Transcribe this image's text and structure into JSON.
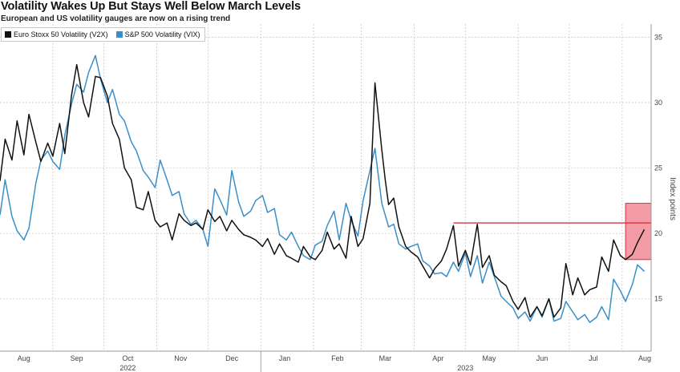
{
  "title": "Volatility Wakes Up But Stays Well Below March Levels",
  "subtitle": "European and US volatility gauges are now on a rising trend",
  "colors": {
    "vstoxx": "#111111",
    "vix": "#3a8fc9",
    "highlight_fill": "#f28b95",
    "highlight_line": "#d9323f",
    "grid": "#c9c9c9"
  },
  "chart_data": {
    "type": "line",
    "ylabel": "Index points",
    "ylim": [
      11,
      36
    ],
    "yticks": [
      15,
      20,
      25,
      30,
      35
    ],
    "xlim": [
      "2022-08-01",
      "2023-08-18"
    ],
    "x_month_labels": [
      {
        "date": "2022-08-15",
        "label": "Aug"
      },
      {
        "date": "2022-09-15",
        "label": "Sep"
      },
      {
        "date": "2022-10-15",
        "label": "Oct"
      },
      {
        "date": "2022-11-15",
        "label": "Nov"
      },
      {
        "date": "2022-12-15",
        "label": "Dec"
      },
      {
        "date": "2023-01-15",
        "label": "Jan"
      },
      {
        "date": "2023-02-15",
        "label": "Feb"
      },
      {
        "date": "2023-03-15",
        "label": "Mar"
      },
      {
        "date": "2023-04-15",
        "label": "Apr"
      },
      {
        "date": "2023-05-15",
        "label": "May"
      },
      {
        "date": "2023-06-15",
        "label": "Jun"
      },
      {
        "date": "2023-07-15",
        "label": "Jul"
      },
      {
        "date": "2023-08-15",
        "label": "Aug"
      }
    ],
    "x_year_labels": [
      {
        "date": "2022-10-15",
        "label": "2022"
      },
      {
        "date": "2023-05-01",
        "label": "2023"
      }
    ],
    "series": [
      {
        "name": "Euro Stoxx 50 Volatility (V2X)",
        "color": "#111111",
        "x": [
          "2022-08-01",
          "2022-08-04",
          "2022-08-08",
          "2022-08-11",
          "2022-08-15",
          "2022-08-18",
          "2022-08-22",
          "2022-08-25",
          "2022-08-29",
          "2022-09-01",
          "2022-09-05",
          "2022-09-08",
          "2022-09-12",
          "2022-09-15",
          "2022-09-19",
          "2022-09-22",
          "2022-09-26",
          "2022-09-29",
          "2022-10-03",
          "2022-10-06",
          "2022-10-10",
          "2022-10-13",
          "2022-10-17",
          "2022-10-20",
          "2022-10-24",
          "2022-10-27",
          "2022-10-31",
          "2022-11-03",
          "2022-11-07",
          "2022-11-10",
          "2022-11-14",
          "2022-11-17",
          "2022-11-21",
          "2022-11-24",
          "2022-11-28",
          "2022-12-01",
          "2022-12-05",
          "2022-12-08",
          "2022-12-12",
          "2022-12-15",
          "2022-12-19",
          "2022-12-22",
          "2022-12-26",
          "2022-12-29",
          "2023-01-02",
          "2023-01-05",
          "2023-01-09",
          "2023-01-12",
          "2023-01-16",
          "2023-01-19",
          "2023-01-23",
          "2023-01-26",
          "2023-01-30",
          "2023-02-02",
          "2023-02-06",
          "2023-02-09",
          "2023-02-13",
          "2023-02-16",
          "2023-02-20",
          "2023-02-23",
          "2023-02-27",
          "2023-03-02",
          "2023-03-06",
          "2023-03-09",
          "2023-03-13",
          "2023-03-15",
          "2023-03-17",
          "2023-03-20",
          "2023-03-23",
          "2023-03-27",
          "2023-03-30",
          "2023-04-03",
          "2023-04-06",
          "2023-04-10",
          "2023-04-13",
          "2023-04-17",
          "2023-04-20",
          "2023-04-24",
          "2023-04-27",
          "2023-05-01",
          "2023-05-04",
          "2023-05-08",
          "2023-05-11",
          "2023-05-15",
          "2023-05-18",
          "2023-05-22",
          "2023-05-25",
          "2023-05-29",
          "2023-06-01",
          "2023-06-05",
          "2023-06-08",
          "2023-06-12",
          "2023-06-15",
          "2023-06-19",
          "2023-06-22",
          "2023-06-26",
          "2023-06-29",
          "2023-07-03",
          "2023-07-06",
          "2023-07-10",
          "2023-07-13",
          "2023-07-17",
          "2023-07-20",
          "2023-07-24",
          "2023-07-27",
          "2023-07-31",
          "2023-08-03",
          "2023-08-07",
          "2023-08-10",
          "2023-08-14"
        ],
        "values": [
          24.0,
          27.2,
          25.6,
          28.6,
          26.0,
          29.1,
          27.0,
          25.5,
          26.9,
          25.9,
          28.4,
          26.1,
          30.6,
          32.9,
          30.0,
          28.9,
          32.0,
          31.9,
          30.5,
          28.4,
          27.2,
          25.0,
          24.1,
          22.0,
          21.8,
          23.2,
          21.0,
          20.5,
          20.8,
          19.5,
          21.5,
          21.0,
          20.6,
          20.8,
          20.3,
          21.8,
          20.9,
          21.3,
          20.2,
          21.0,
          20.3,
          19.9,
          19.7,
          19.5,
          19.0,
          19.6,
          18.4,
          19.2,
          18.3,
          18.1,
          17.8,
          19.0,
          18.2,
          18.0,
          18.7,
          20.1,
          18.8,
          19.2,
          18.1,
          21.3,
          19.0,
          19.6,
          22.3,
          31.5,
          26.4,
          24.1,
          22.2,
          22.7,
          20.5,
          19.0,
          18.6,
          18.2,
          17.5,
          16.6,
          17.3,
          17.9,
          18.8,
          20.6,
          17.5,
          18.7,
          17.6,
          20.7,
          17.4,
          18.3,
          16.8,
          16.3,
          16.0,
          14.8,
          14.2,
          15.1,
          13.6,
          14.4,
          13.7,
          15.0,
          13.6,
          14.3,
          17.7,
          15.3,
          16.6,
          15.3,
          15.7,
          15.9,
          18.2,
          17.1,
          19.5,
          18.3,
          18.0,
          18.4,
          19.3,
          20.3
        ]
      },
      {
        "name": "S&P 500 Volatility (VIX)",
        "color": "#3a8fc9",
        "x": [
          "2022-08-01",
          "2022-08-04",
          "2022-08-08",
          "2022-08-11",
          "2022-08-15",
          "2022-08-18",
          "2022-08-22",
          "2022-08-25",
          "2022-08-29",
          "2022-09-01",
          "2022-09-05",
          "2022-09-08",
          "2022-09-12",
          "2022-09-15",
          "2022-09-19",
          "2022-09-22",
          "2022-09-26",
          "2022-09-29",
          "2022-10-03",
          "2022-10-06",
          "2022-10-10",
          "2022-10-13",
          "2022-10-17",
          "2022-10-20",
          "2022-10-24",
          "2022-10-27",
          "2022-10-31",
          "2022-11-03",
          "2022-11-07",
          "2022-11-10",
          "2022-11-14",
          "2022-11-17",
          "2022-11-21",
          "2022-11-24",
          "2022-11-28",
          "2022-12-01",
          "2022-12-05",
          "2022-12-08",
          "2022-12-12",
          "2022-12-15",
          "2022-12-19",
          "2022-12-22",
          "2022-12-26",
          "2022-12-29",
          "2023-01-02",
          "2023-01-05",
          "2023-01-09",
          "2023-01-12",
          "2023-01-16",
          "2023-01-19",
          "2023-01-23",
          "2023-01-26",
          "2023-01-30",
          "2023-02-02",
          "2023-02-06",
          "2023-02-09",
          "2023-02-13",
          "2023-02-16",
          "2023-02-20",
          "2023-02-23",
          "2023-02-27",
          "2023-03-02",
          "2023-03-06",
          "2023-03-09",
          "2023-03-13",
          "2023-03-15",
          "2023-03-17",
          "2023-03-20",
          "2023-03-23",
          "2023-03-27",
          "2023-03-30",
          "2023-04-03",
          "2023-04-06",
          "2023-04-10",
          "2023-04-13",
          "2023-04-17",
          "2023-04-20",
          "2023-04-24",
          "2023-04-27",
          "2023-05-01",
          "2023-05-04",
          "2023-05-08",
          "2023-05-11",
          "2023-05-15",
          "2023-05-18",
          "2023-05-22",
          "2023-05-25",
          "2023-05-29",
          "2023-06-01",
          "2023-06-05",
          "2023-06-08",
          "2023-06-12",
          "2023-06-15",
          "2023-06-19",
          "2023-06-22",
          "2023-06-26",
          "2023-06-29",
          "2023-07-03",
          "2023-07-06",
          "2023-07-10",
          "2023-07-13",
          "2023-07-17",
          "2023-07-20",
          "2023-07-24",
          "2023-07-27",
          "2023-07-31",
          "2023-08-03",
          "2023-08-07",
          "2023-08-10",
          "2023-08-14"
        ],
        "values": [
          21.4,
          24.1,
          21.3,
          20.2,
          19.5,
          20.4,
          23.8,
          25.6,
          26.3,
          25.5,
          24.9,
          27.5,
          29.9,
          31.4,
          30.8,
          32.3,
          33.6,
          31.8,
          30.0,
          31.0,
          29.1,
          28.6,
          27.0,
          26.3,
          24.8,
          24.3,
          23.5,
          25.6,
          24.1,
          22.9,
          23.2,
          21.5,
          20.7,
          21.0,
          20.3,
          19.0,
          23.4,
          22.6,
          21.4,
          24.8,
          22.4,
          21.3,
          21.7,
          22.5,
          22.9,
          21.6,
          21.9,
          19.9,
          19.5,
          20.1,
          19.0,
          18.3,
          18.0,
          19.1,
          19.4,
          20.6,
          21.7,
          19.5,
          22.3,
          21.0,
          19.8,
          22.5,
          24.8,
          26.5,
          22.3,
          21.4,
          20.5,
          20.7,
          19.2,
          18.8,
          19.0,
          19.2,
          17.9,
          17.5,
          16.9,
          17.0,
          16.7,
          17.8,
          17.1,
          18.5,
          16.7,
          18.3,
          16.2,
          17.8,
          16.7,
          15.2,
          14.8,
          14.3,
          13.5,
          14.0,
          13.3,
          14.4,
          13.6,
          15.0,
          13.3,
          13.5,
          14.8,
          14.0,
          13.4,
          13.8,
          13.2,
          13.6,
          14.4,
          13.4,
          16.5,
          15.6,
          14.8,
          16.1,
          17.6,
          17.1
        ]
      }
    ],
    "annotation": {
      "type": "resistance-line-and-box",
      "line_level": 20.8,
      "line_x_start": "2023-04-24",
      "line_x_end": "2023-08-18",
      "box_x_start": "2023-08-03",
      "box_x_end": "2023-08-18",
      "box_y_range": [
        18.0,
        22.3
      ]
    },
    "grid": true,
    "legend": "top-left"
  }
}
